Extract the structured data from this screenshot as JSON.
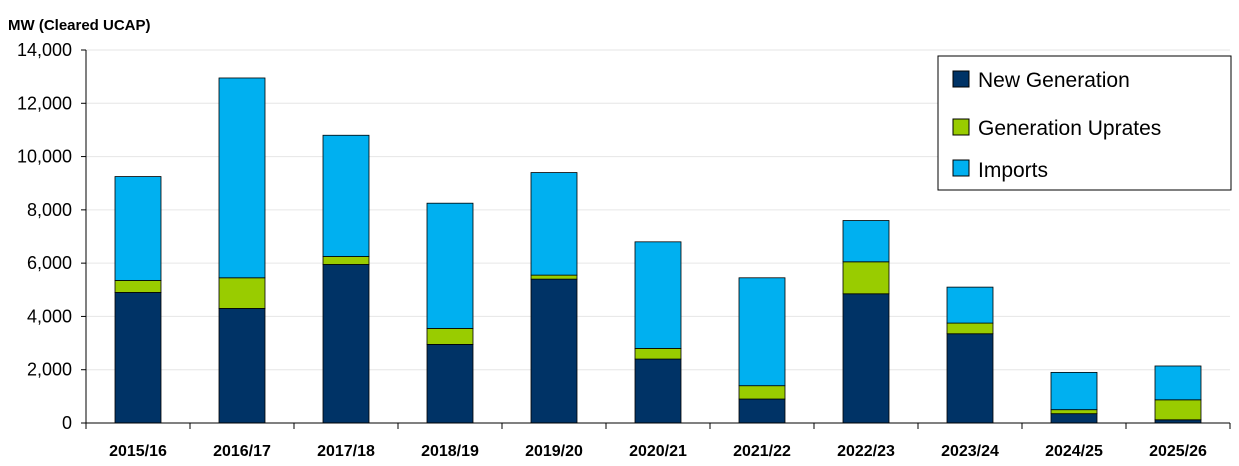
{
  "chart_data": {
    "type": "bar",
    "stacked": true,
    "ylabel": "MW (Cleared UCAP)",
    "ylim": [
      0,
      14000
    ],
    "yticks": [
      0,
      2000,
      4000,
      6000,
      8000,
      10000,
      12000,
      14000
    ],
    "ytick_labels": [
      "0",
      "2,000",
      "4,000",
      "6,000",
      "8,000",
      "10,000",
      "12,000",
      "14,000"
    ],
    "categories": [
      "2015/16",
      "2016/17",
      "2017/18",
      "2018/19",
      "2019/20",
      "2020/21",
      "2021/22",
      "2022/23",
      "2023/24",
      "2024/25",
      "2025/26"
    ],
    "series": [
      {
        "name": "New Generation",
        "color": "#003366",
        "values": [
          4900,
          4300,
          5950,
          2950,
          5400,
          2400,
          900,
          4850,
          3350,
          350,
          120
        ]
      },
      {
        "name": "Generation Uprates",
        "color": "#99CC00",
        "values": [
          450,
          1150,
          300,
          600,
          150,
          400,
          500,
          1200,
          400,
          150,
          750
        ]
      },
      {
        "name": "Imports",
        "color": "#00B0F0",
        "values": [
          3900,
          7500,
          4550,
          4700,
          3850,
          4000,
          4050,
          1550,
          1350,
          1400,
          1270
        ]
      }
    ],
    "legend": {
      "position": "top-right"
    },
    "grid": true
  }
}
